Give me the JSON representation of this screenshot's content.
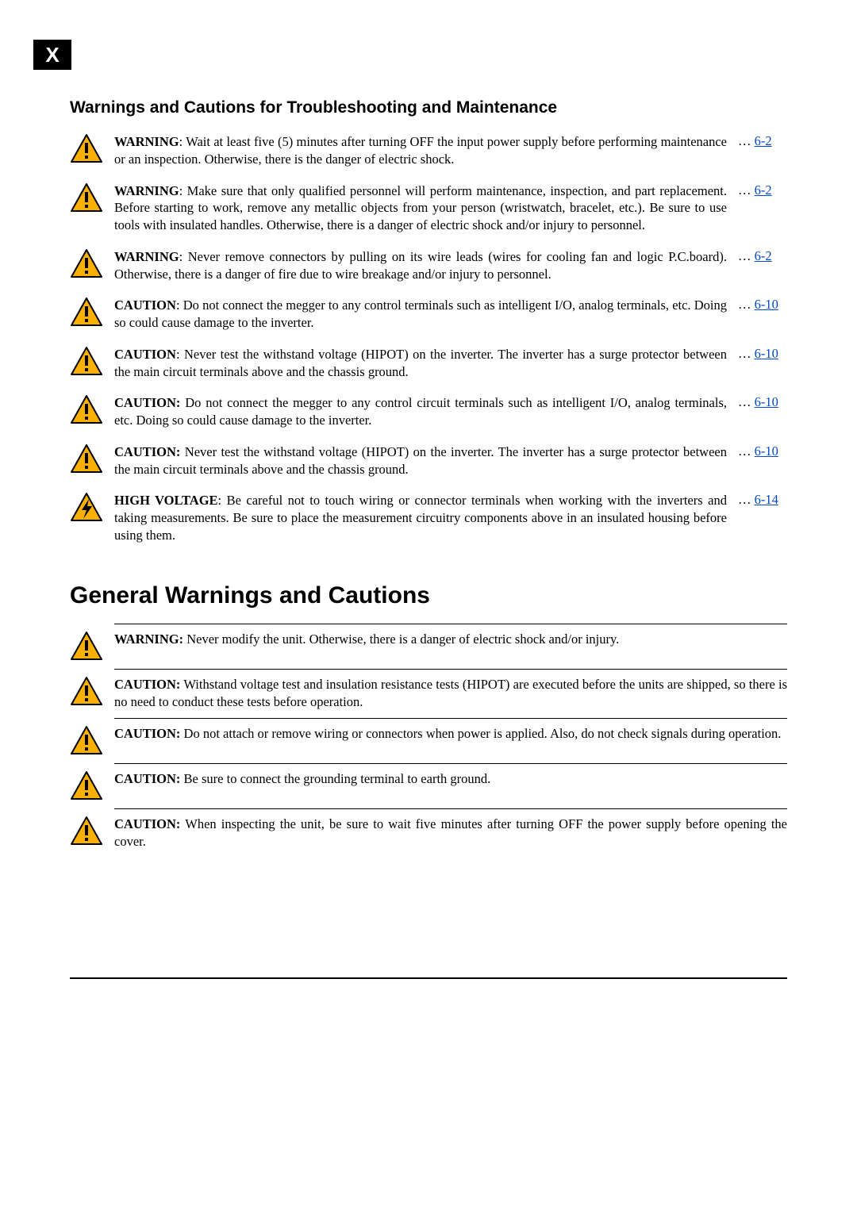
{
  "page_tab": "X",
  "section1_title": "Warnings and Cautions for Troubleshooting and Maintenance",
  "section2_title": "General Warnings and Cautions",
  "colors": {
    "warning_fill": "#f9b000",
    "warning_stroke": "#000000",
    "hv_fill": "#f9b000",
    "hv_bolt": "#000000",
    "link": "#0047cc",
    "text": "#000000",
    "bg": "#ffffff"
  },
  "refs": {
    "r62": "6-2",
    "r610": "6-10",
    "r614": "6-14"
  },
  "ellipsis": "… ",
  "items1": [
    {
      "icon": "warning",
      "label": "WARNING",
      "sep": ": ",
      "text": "Wait at least five (5) minutes after turning OFF the input power supply before performing maintenance or an inspection. Otherwise, there is the danger of electric shock.",
      "ref": "r62"
    },
    {
      "icon": "warning",
      "label": "WARNING",
      "sep": ": ",
      "text": "Make sure that only qualified personnel will perform maintenance, inspection, and part replacement. Before starting to work, remove any metallic objects from your person (wristwatch, bracelet, etc.). Be sure to use tools with insulated handles. Otherwise, there is a danger of electric shock and/or injury to personnel.",
      "ref": "r62"
    },
    {
      "icon": "warning",
      "label": "WARNING",
      "sep": ": ",
      "text": "Never remove connectors by pulling on its wire leads (wires for cooling fan and logic P.C.board). Otherwise, there is a danger of fire due to wire breakage and/or injury to personnel.",
      "ref": "r62"
    },
    {
      "icon": "warning",
      "label": "CAUTION",
      "sep": ": ",
      "text": "Do not connect the megger to any control terminals such as intelligent I/O, analog terminals, etc. Doing so could cause damage to the inverter.",
      "ref": "r610"
    },
    {
      "icon": "warning",
      "label": "CAUTION",
      "sep": ": ",
      "text": "Never test the withstand voltage (HIPOT) on the inverter. The inverter has a surge protector between the main circuit terminals above and the chassis ground.",
      "ref": "r610"
    },
    {
      "icon": "warning",
      "label": "CAUTION:",
      "sep": " ",
      "text": "Do not connect the megger to any control circuit terminals such as intelligent I/O, analog terminals, etc. Doing so could cause damage to the inverter.",
      "ref": "r610"
    },
    {
      "icon": "warning",
      "label": "CAUTION:",
      "sep": " ",
      "text": "Never test the withstand voltage (HIPOT) on the inverter. The inverter has a surge protector between the main circuit terminals above and the chassis ground.",
      "ref": "r610"
    },
    {
      "icon": "hv",
      "label": "HIGH VOLTAGE",
      "sep": ": ",
      "text": "Be careful not to touch wiring or connector terminals when working with the inverters and taking measurements. Be sure to place the measurement circuitry components above in an insulated housing before using them.",
      "ref": "r614"
    }
  ],
  "items2": [
    {
      "icon": "warning",
      "label": "WARNING:",
      "sep": " ",
      "text": "Never modify the unit. Otherwise, there is a danger of electric shock and/or injury."
    },
    {
      "icon": "warning",
      "label": "CAUTION:",
      "sep": " ",
      "text": "Withstand voltage test and insulation resistance tests (HIPOT) are executed before the units are shipped, so there is no need to conduct these tests before operation."
    },
    {
      "icon": "warning",
      "label": "CAUTION:",
      "sep": " ",
      "text": "Do not attach or remove wiring or connectors when power is applied. Also, do not check signals during operation."
    },
    {
      "icon": "warning",
      "label": "CAUTION:",
      "sep": " ",
      "text": "Be sure to connect the grounding terminal to earth ground."
    },
    {
      "icon": "warning",
      "label": "CAUTION:",
      "sep": " ",
      "text": "When inspecting the unit, be sure to wait five minutes after turning OFF the power supply before opening the cover."
    }
  ]
}
